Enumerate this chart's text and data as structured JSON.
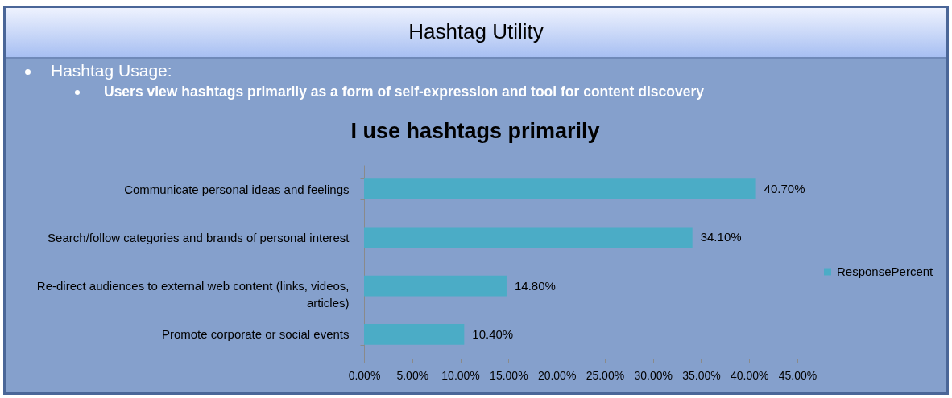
{
  "chart_data": {
    "type": "bar",
    "orientation": "horizontal",
    "title": "I use hashtags primarily",
    "annotations": [
      "Hashtag Utility",
      "Hashtag Usage:",
      "Users view hashtags primarily as a form of self-expression and tool for content discovery"
    ],
    "categories": [
      "Communicate personal ideas and feelings",
      "Search/follow categories and brands of personal interest",
      "Re-direct audiences to external web content (links, videos, articles)",
      "Promote corporate or social events"
    ],
    "series": [
      {
        "name": "ResponsePercent",
        "color": "#4bacc6",
        "values": [
          40.7,
          34.1,
          14.8,
          10.4
        ],
        "value_labels": [
          "40.70%",
          "34.10%",
          "14.80%",
          "10.40%"
        ]
      }
    ],
    "xlim": [
      0,
      45
    ],
    "xticks": [
      {
        "value": 0,
        "label": "0.00%"
      },
      {
        "value": 5,
        "label": "5.00%"
      },
      {
        "value": 10,
        "label": "10.00%"
      },
      {
        "value": 15,
        "label": "15.00%"
      },
      {
        "value": 20,
        "label": "20.00%"
      },
      {
        "value": 25,
        "label": "25.00%"
      },
      {
        "value": 30,
        "label": "30.00%"
      },
      {
        "value": 35,
        "label": "35.00%"
      },
      {
        "value": 40,
        "label": "40.00%"
      },
      {
        "value": 45,
        "label": "45.00%"
      }
    ],
    "legend": "right",
    "grid": false
  }
}
